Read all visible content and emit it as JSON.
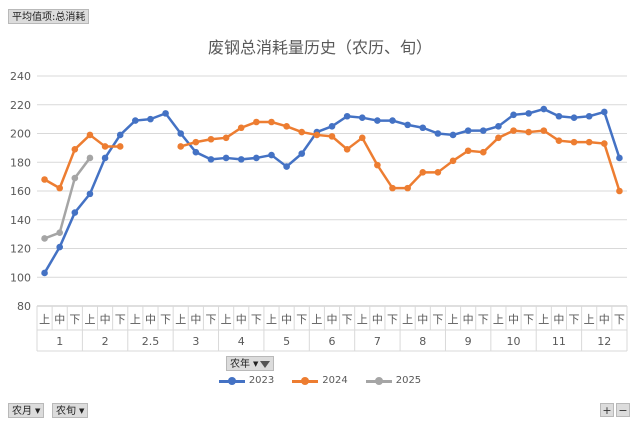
{
  "pivot": {
    "value_field": "平均值项:总消耗",
    "series_field": "农年",
    "row_fields": [
      "农月",
      "农旬"
    ],
    "zoom_in": "+",
    "zoom_out": "−"
  },
  "chart_data": {
    "type": "line",
    "title": "废钢总消耗量历史（农历、旬）",
    "ylim": [
      80,
      240
    ],
    "y_ticks": [
      80,
      100,
      120,
      140,
      160,
      180,
      200,
      220,
      240
    ],
    "grid": true,
    "legend_position": "bottom",
    "xun_labels": [
      "上",
      "中",
      "下"
    ],
    "months": [
      "1",
      "2",
      "2.5",
      "3",
      "4",
      "5",
      "6",
      "7",
      "8",
      "9",
      "10",
      "11",
      "12"
    ],
    "series": [
      {
        "name": "2023",
        "color": "#4472c4",
        "values": [
          103,
          121,
          145,
          158,
          183,
          199,
          209,
          210,
          214,
          200,
          187,
          182,
          183,
          182,
          183,
          185,
          177,
          186,
          201,
          205,
          212,
          211,
          209,
          209,
          206,
          204,
          200,
          199,
          202,
          202,
          205,
          213,
          214,
          217,
          212,
          211,
          212,
          215,
          183
        ]
      },
      {
        "name": "2024",
        "color": "#ed7d31",
        "values": [
          168,
          162,
          189,
          199,
          191,
          191,
          null,
          null,
          null,
          191,
          194,
          196,
          197,
          204,
          208,
          208,
          205,
          201,
          199,
          198,
          189,
          197,
          178,
          162,
          162,
          173,
          173,
          181,
          188,
          187,
          197,
          202,
          201,
          202,
          195,
          194,
          194,
          193,
          160
        ]
      },
      {
        "name": "2025",
        "color": "#a5a5a5",
        "values": [
          127,
          131,
          169,
          183
        ]
      }
    ]
  }
}
